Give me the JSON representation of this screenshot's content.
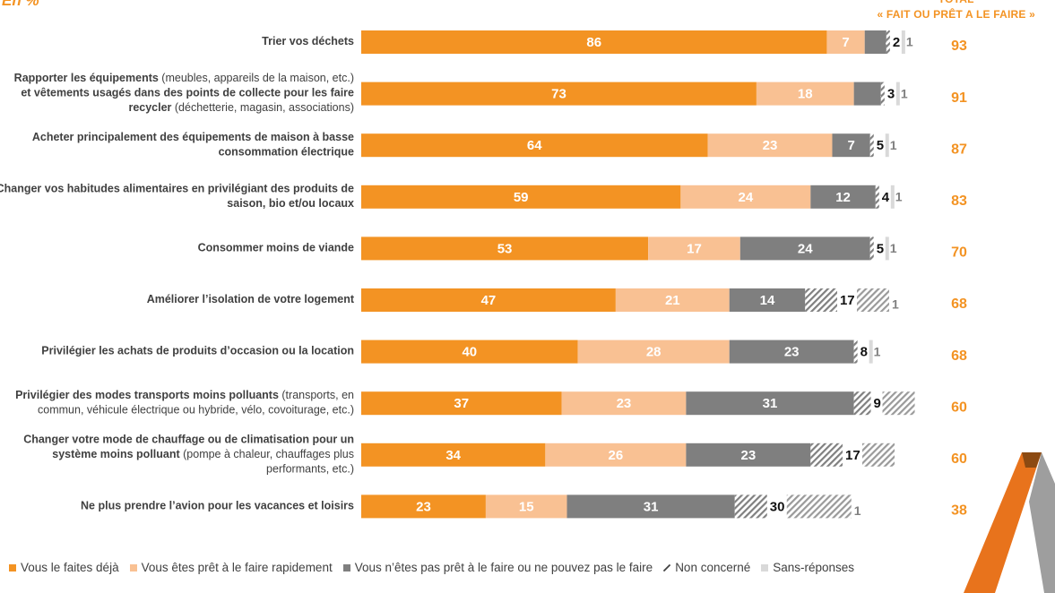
{
  "subtitle": "En %",
  "total_header": {
    "line1": "TOTAL",
    "line2": "« FAIT OU PRÊT A LE FAIRE »"
  },
  "colors": {
    "deja": "#F39323",
    "pret": "#F9C193",
    "pas_pret": "#7F7F7F",
    "non_concerne_stripe": "#808080",
    "sans_reponse": "#D9D9D9",
    "total": "#F39323"
  },
  "chart_data": {
    "type": "bar",
    "orientation": "horizontal",
    "stacked": true,
    "xlim": [
      0,
      100
    ],
    "series": [
      {
        "name": "Vous le faites déjà",
        "key": "deja"
      },
      {
        "name": "Vous êtes prêt à le faire rapidement",
        "key": "pret"
      },
      {
        "name": "Vous n’êtes pas prêt à le faire ou ne pouvez pas le faire",
        "key": "pas_pret"
      },
      {
        "name": "Non concerné",
        "key": "non_concerne"
      },
      {
        "name": "Sans-réponses",
        "key": "sans_reponse"
      }
    ],
    "categories": [
      {
        "label": [
          [
            {
              "t": "Trier vos déchets",
              "b": true
            }
          ]
        ],
        "values": [
          86,
          7,
          4,
          2,
          1
        ],
        "total": 93
      },
      {
        "label": [
          [
            {
              "t": "Rapporter les équipements",
              "b": true
            },
            {
              "t": " (meubles, appareils de la maison, etc.)",
              "b": false
            }
          ],
          [
            {
              "t": "et vêtements usagés dans des points de collecte pour les faire",
              "b": true
            }
          ],
          [
            {
              "t": "recycler",
              "b": true
            },
            {
              "t": " (déchetterie, magasin, associations)",
              "b": false
            }
          ]
        ],
        "values": [
          73,
          18,
          5,
          3,
          1
        ],
        "total": 91
      },
      {
        "label": [
          [
            {
              "t": "Acheter principalement des équipements de maison à basse",
              "b": true
            }
          ],
          [
            {
              "t": "consommation électrique",
              "b": true
            }
          ]
        ],
        "values": [
          64,
          23,
          7,
          5,
          1
        ],
        "total": 87
      },
      {
        "label": [
          [
            {
              "t": "Changer vos habitudes alimentaires en privilégiant des produits de",
              "b": true
            }
          ],
          [
            {
              "t": "saison, bio et/ou locaux",
              "b": true
            }
          ]
        ],
        "values": [
          59,
          24,
          12,
          4,
          1
        ],
        "total": 83
      },
      {
        "label": [
          [
            {
              "t": "Consommer moins de viande",
              "b": true
            }
          ]
        ],
        "values": [
          53,
          17,
          24,
          5,
          1
        ],
        "total": 70
      },
      {
        "label": [
          [
            {
              "t": "Améliorer l’isolation de votre logement",
              "b": true
            }
          ]
        ],
        "values": [
          47,
          21,
          14,
          17,
          1
        ],
        "total": 68
      },
      {
        "label": [
          [
            {
              "t": "Privilégier les achats de produits d’occasion ou la location",
              "b": true
            }
          ]
        ],
        "values": [
          40,
          28,
          23,
          8,
          1
        ],
        "total": 68
      },
      {
        "label": [
          [
            {
              "t": "Privilégier des modes transports moins polluants",
              "b": true
            },
            {
              "t": " (transports, en",
              "b": false
            }
          ],
          [
            {
              "t": "commun, véhicule électrique ou hybride, vélo, covoiturage, etc.)",
              "b": false
            }
          ]
        ],
        "values": [
          37,
          23,
          31,
          9,
          null
        ],
        "total": 60
      },
      {
        "label": [
          [
            {
              "t": "Changer votre mode de chauffage ou de climatisation pour un",
              "b": true
            }
          ],
          [
            {
              "t": "système moins polluant",
              "b": true
            },
            {
              "t": " (pompe à chaleur, chauffages plus",
              "b": false
            }
          ],
          [
            {
              "t": "performants, etc.)",
              "b": false
            }
          ]
        ],
        "values": [
          34,
          26,
          23,
          17,
          null
        ],
        "total": 60
      },
      {
        "label": [
          [
            {
              "t": "Ne plus prendre l’avion pour les vacances et loisirs",
              "b": true
            }
          ]
        ],
        "values": [
          23,
          15,
          31,
          30,
          1
        ],
        "total": 38
      }
    ]
  }
}
